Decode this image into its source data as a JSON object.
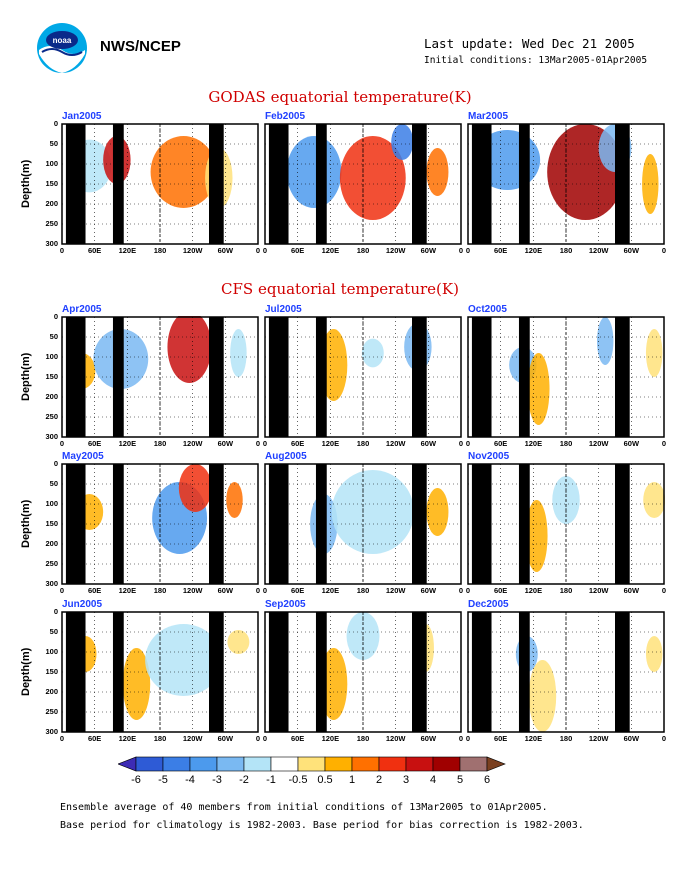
{
  "header": {
    "agency": "NWS/NCEP",
    "last_update": "Last update: Wed Dec 21 2005",
    "initial_conditions": "Initial conditions: 13Mar2005-01Apr2005",
    "logo_text": "noaa"
  },
  "godas_title": "GODAS equatorial temperature(K)",
  "cfs_title": "CFS equatorial temperature(K)",
  "ylabel": "Depth(m)",
  "footer": {
    "line1": "Ensemble average of 40 members from initial conditions of 13Mar2005 to 01Apr2005.",
    "line2": "Base period for climatology is 1982-2003. Base period for bias correction is 1982-2003."
  },
  "colors": {
    "title": "#d00000",
    "panel_label": "#2040ff",
    "land": "#000000"
  },
  "chart_data": [
    {
      "type": "heatmap",
      "group": "GODAS",
      "panels": [
        "Jan2005",
        "Feb2005",
        "Mar2005"
      ],
      "x_ticks": [
        "0",
        "60E",
        "120E",
        "180",
        "120W",
        "60W",
        "0"
      ],
      "y_ticks": [
        "0",
        "50",
        "100",
        "150",
        "200",
        "250",
        "300"
      ],
      "ylim": [
        300,
        0
      ],
      "ylabel": "Depth(m)",
      "grid": true
    },
    {
      "type": "heatmap",
      "group": "CFS",
      "panels": [
        "Apr2005",
        "Jul2005",
        "Oct2005",
        "May2005",
        "Aug2005",
        "Nov2005",
        "Jun2005",
        "Sep2005",
        "Dec2005"
      ],
      "x_ticks": [
        "0",
        "60E",
        "120E",
        "180",
        "120W",
        "60W",
        "0"
      ],
      "y_ticks": [
        "0",
        "50",
        "100",
        "150",
        "200",
        "250",
        "300"
      ],
      "ylim": [
        300,
        0
      ],
      "ylabel": "Depth(m)",
      "grid": true
    }
  ],
  "colorbar": {
    "labels": [
      "-6",
      "-5",
      "-4",
      "-3",
      "-2",
      "-1",
      "-0.5",
      "0.5",
      "1",
      "2",
      "3",
      "4",
      "5",
      "6"
    ],
    "colors": [
      "#3d2bb5",
      "#2e5bd6",
      "#3b7ee6",
      "#4c9aed",
      "#7ab9f2",
      "#b4e4f7",
      "#ffffff",
      "#ffe27a",
      "#ffb000",
      "#ff7000",
      "#f03010",
      "#c81010",
      "#a00000",
      "#a07070",
      "#7a4020"
    ]
  }
}
